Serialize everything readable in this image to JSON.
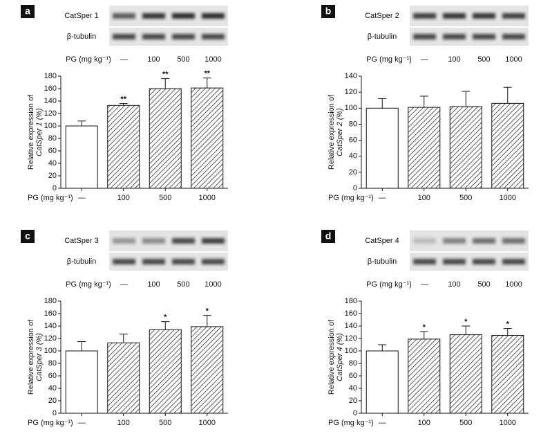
{
  "chart_data": [
    {
      "type": "bar",
      "panel": "a",
      "blot_labels": [
        "CatSper 1",
        "β-tubulin"
      ],
      "x_label": "PG (mg kg⁻¹)",
      "y_label": [
        "Relative expression of",
        "CatSper 1 (%)"
      ],
      "categories": [
        "—",
        "100",
        "500",
        "1000"
      ],
      "values": [
        100,
        133,
        160,
        161
      ],
      "errors": [
        8,
        3,
        16,
        16
      ],
      "significance": [
        null,
        "**",
        "**",
        "**"
      ],
      "colors": [
        "#ffffff",
        "#333333",
        "#333333",
        "#333333"
      ],
      "ylim": [
        0,
        180
      ],
      "yticks": [
        0,
        20,
        40,
        60,
        80,
        100,
        120,
        140,
        160,
        180
      ]
    },
    {
      "type": "bar",
      "panel": "b",
      "blot_labels": [
        "CatSper 2",
        "β-tubulin"
      ],
      "x_label": "PG (mg kg⁻¹)",
      "y_label": [
        "Relative expression of",
        "CatSper 2 (%)"
      ],
      "categories": [
        "—",
        "100",
        "500",
        "1000"
      ],
      "values": [
        100,
        101,
        102,
        106
      ],
      "errors": [
        12,
        14,
        19,
        20
      ],
      "significance": [
        null,
        null,
        null,
        null
      ],
      "colors": [
        "#ffffff",
        "#333333",
        "#333333",
        "#333333"
      ],
      "ylim": [
        0,
        140
      ],
      "yticks": [
        0,
        20,
        40,
        60,
        80,
        100,
        120,
        140
      ]
    },
    {
      "type": "bar",
      "panel": "c",
      "blot_labels": [
        "CatSper 3",
        "β-tubulin"
      ],
      "x_label": "PG (mg kg⁻¹)",
      "y_label": [
        "Relative expression of",
        "CatSper 3 (%)"
      ],
      "categories": [
        "—",
        "100",
        "500",
        "1000"
      ],
      "values": [
        100,
        113,
        134,
        139
      ],
      "errors": [
        15,
        14,
        13,
        18
      ],
      "significance": [
        null,
        null,
        "*",
        "*"
      ],
      "colors": [
        "#ffffff",
        "#333333",
        "#333333",
        "#333333"
      ],
      "ylim": [
        0,
        180
      ],
      "yticks": [
        0,
        20,
        40,
        60,
        80,
        100,
        120,
        140,
        160,
        180
      ]
    },
    {
      "type": "bar",
      "panel": "d",
      "blot_labels": [
        "CatSper 4",
        "β-tubulin"
      ],
      "x_label": "PG (mg kg⁻¹)",
      "y_label": [
        "Relative expression of",
        "CatSper 4 (%)"
      ],
      "categories": [
        "—",
        "100",
        "500",
        "1000"
      ],
      "values": [
        100,
        119,
        126,
        125
      ],
      "errors": [
        10,
        12,
        14,
        11
      ],
      "significance": [
        null,
        "*",
        "*",
        "*"
      ],
      "colors": [
        "#ffffff",
        "#333333",
        "#333333",
        "#333333"
      ],
      "ylim": [
        0,
        180
      ],
      "yticks": [
        0,
        20,
        40,
        60,
        80,
        100,
        120,
        140,
        160,
        180
      ]
    }
  ]
}
